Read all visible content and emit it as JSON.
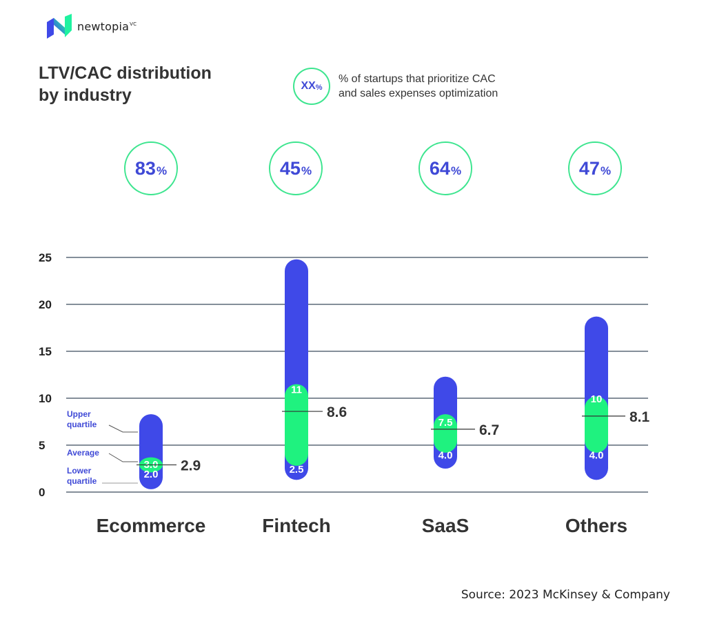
{
  "brand": {
    "name": "newtopia",
    "suffix": "VC"
  },
  "title_lines": [
    "LTV/CAC distribution",
    "by industry"
  ],
  "legend": {
    "symbol_number": "XX",
    "symbol_unit": "%",
    "text_lines": [
      "% of startups that prioritize CAC",
      "and sales expenses optimization"
    ]
  },
  "colors": {
    "bar": "#3f49e8",
    "average": "#1ff27f",
    "ring": "#3de58f",
    "percent_text": "#3f49d6",
    "grid": "#3b4a5c"
  },
  "annotation_labels": {
    "upper": [
      "Upper",
      "quartile"
    ],
    "average": "Average",
    "lower": [
      "Lower",
      "quartile"
    ]
  },
  "source": "Source: 2023 McKinsey & Company",
  "chart_data": {
    "type": "bar",
    "subtype": "range-bar",
    "ylim": [
      0,
      25
    ],
    "yticks": [
      0,
      5,
      10,
      15,
      20,
      25
    ],
    "grid": true,
    "categories": [
      "Ecommerce",
      "Fintech",
      "SaaS",
      "Others"
    ],
    "priority_percent": [
      83,
      45,
      64,
      47
    ],
    "series": [
      {
        "name": "Lower quartile",
        "values": [
          2.0,
          2.5,
          4.0,
          4.0
        ],
        "labels": [
          "2.0",
          "2.5",
          "4.0",
          "4.0"
        ]
      },
      {
        "name": "Average",
        "values": [
          2.9,
          8.6,
          6.7,
          8.1
        ],
        "labels": [
          "2.9",
          "8.6",
          "6.7",
          "8.1"
        ]
      },
      {
        "name": "Upper quartile",
        "values": [
          3.0,
          11,
          7.5,
          10
        ],
        "labels": [
          "3.0",
          "11",
          "7.5",
          "10"
        ]
      }
    ],
    "range_min": [
      0.3,
      1.3,
      2.5,
      1.3
    ],
    "range_max": [
      8.3,
      24.8,
      12.3,
      18.7
    ],
    "average_band": [
      [
        2.1,
        3.7
      ],
      [
        2.8,
        11.5
      ],
      [
        4.2,
        8.3
      ],
      [
        4.2,
        10.2
      ]
    ]
  }
}
